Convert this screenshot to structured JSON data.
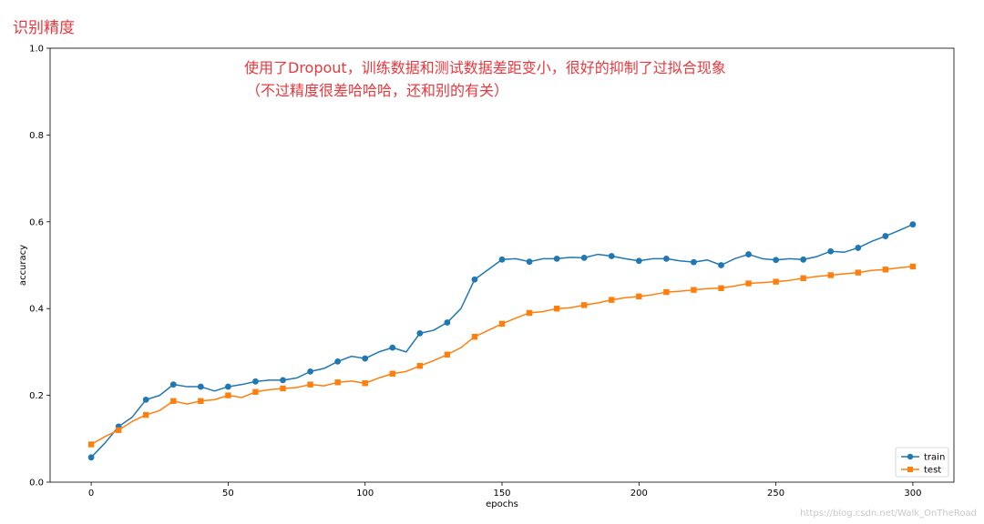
{
  "page_title": "识别精度",
  "watermark": "https://blog.csdn.net/Walk_OnTheRoad",
  "colors": {
    "train": "#1f77b4",
    "test": "#ff7f0e",
    "annotation": "#e8383d"
  },
  "chart_data": {
    "type": "line",
    "title": "",
    "xlabel": "epochs",
    "ylabel": "accuracy",
    "xlim": [
      -15,
      315
    ],
    "ylim": [
      0.0,
      1.0
    ],
    "xticks": [
      0,
      50,
      100,
      150,
      200,
      250,
      300
    ],
    "yticks": [
      0.0,
      0.2,
      0.4,
      0.6,
      0.8,
      1.0
    ],
    "xtick_labels": [
      "0",
      "50",
      "100",
      "150",
      "200",
      "250",
      "300"
    ],
    "ytick_labels": [
      "0.0",
      "0.2",
      "0.4",
      "0.6",
      "0.8",
      "1.0"
    ],
    "grid": false,
    "legend_position": "lower-right",
    "annotation_lines": [
      "使用了Dropout，训练数据和测试数据差距变小，很好的抑制了过拟合现象",
      "（不过精度很差哈哈哈，还和别的有关）"
    ],
    "series": [
      {
        "name": "train",
        "marker": "circle",
        "marker_every": 10,
        "x": [
          0,
          5,
          10,
          15,
          20,
          25,
          30,
          35,
          40,
          45,
          50,
          55,
          60,
          65,
          70,
          75,
          80,
          85,
          90,
          95,
          100,
          105,
          110,
          115,
          120,
          125,
          130,
          135,
          140,
          145,
          150,
          155,
          160,
          165,
          170,
          175,
          180,
          185,
          190,
          195,
          200,
          205,
          210,
          215,
          220,
          225,
          230,
          235,
          240,
          245,
          250,
          255,
          260,
          265,
          270,
          275,
          280,
          285,
          290,
          295,
          300
        ],
        "values": [
          0.057,
          0.09,
          0.128,
          0.15,
          0.19,
          0.2,
          0.225,
          0.22,
          0.22,
          0.21,
          0.22,
          0.225,
          0.232,
          0.235,
          0.235,
          0.24,
          0.255,
          0.262,
          0.278,
          0.29,
          0.285,
          0.3,
          0.31,
          0.3,
          0.343,
          0.35,
          0.368,
          0.4,
          0.467,
          0.49,
          0.513,
          0.515,
          0.508,
          0.515,
          0.515,
          0.518,
          0.517,
          0.525,
          0.521,
          0.515,
          0.51,
          0.515,
          0.515,
          0.51,
          0.507,
          0.512,
          0.5,
          0.515,
          0.525,
          0.515,
          0.512,
          0.515,
          0.513,
          0.52,
          0.532,
          0.53,
          0.54,
          0.555,
          0.567,
          0.58,
          0.594
        ]
      },
      {
        "name": "test",
        "marker": "square",
        "marker_every": 10,
        "x": [
          0,
          5,
          10,
          15,
          20,
          25,
          30,
          35,
          40,
          45,
          50,
          55,
          60,
          65,
          70,
          75,
          80,
          85,
          90,
          95,
          100,
          105,
          110,
          115,
          120,
          125,
          130,
          135,
          140,
          145,
          150,
          155,
          160,
          165,
          170,
          175,
          180,
          185,
          190,
          195,
          200,
          205,
          210,
          215,
          220,
          225,
          230,
          235,
          240,
          245,
          250,
          255,
          260,
          265,
          270,
          275,
          280,
          285,
          290,
          295,
          300
        ],
        "values": [
          0.087,
          0.105,
          0.12,
          0.14,
          0.155,
          0.165,
          0.187,
          0.18,
          0.187,
          0.19,
          0.2,
          0.195,
          0.208,
          0.213,
          0.216,
          0.218,
          0.225,
          0.222,
          0.23,
          0.233,
          0.228,
          0.24,
          0.25,
          0.255,
          0.268,
          0.28,
          0.294,
          0.31,
          0.335,
          0.35,
          0.365,
          0.378,
          0.39,
          0.393,
          0.4,
          0.402,
          0.408,
          0.413,
          0.42,
          0.425,
          0.428,
          0.432,
          0.438,
          0.44,
          0.443,
          0.446,
          0.447,
          0.452,
          0.458,
          0.46,
          0.462,
          0.465,
          0.47,
          0.474,
          0.477,
          0.48,
          0.483,
          0.488,
          0.49,
          0.494,
          0.497
        ]
      }
    ]
  }
}
